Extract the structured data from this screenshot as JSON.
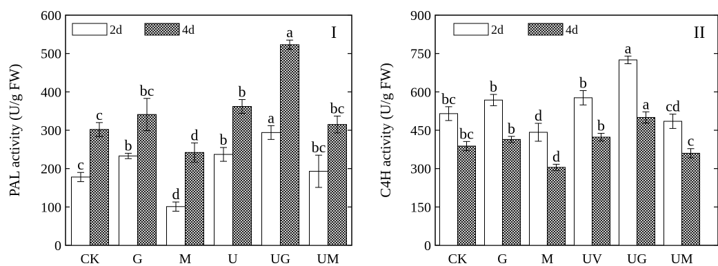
{
  "chart_data": [
    {
      "type": "bar",
      "panel_label": "I",
      "ylabel": "PAL activity (U/g FW)",
      "ylim": [
        0,
        600
      ],
      "yticks": [
        0,
        100,
        200,
        300,
        400,
        500,
        600
      ],
      "categories": [
        "CK",
        "G",
        "M",
        "U",
        "UG",
        "UM"
      ],
      "legend_position": "top-left",
      "series": [
        {
          "name": "2d",
          "pattern": "white",
          "values": [
            178,
            233,
            101,
            237,
            294,
            193
          ],
          "errors": [
            12,
            7,
            12,
            18,
            18,
            42
          ],
          "labels": [
            "c",
            "b",
            "d",
            "b",
            "a",
            "bc"
          ]
        },
        {
          "name": "4d",
          "pattern": "crosshatch",
          "values": [
            302,
            341,
            242,
            362,
            523,
            315
          ],
          "errors": [
            18,
            42,
            25,
            18,
            12,
            22
          ],
          "labels": [
            "c",
            "bc",
            "d",
            "b",
            "a",
            "bc"
          ]
        }
      ]
    },
    {
      "type": "bar",
      "panel_label": "II",
      "ylabel": "C4H activity (U/g FW)",
      "ylim": [
        0,
        900
      ],
      "yticks": [
        0,
        150,
        300,
        450,
        600,
        750,
        900
      ],
      "categories": [
        "CK",
        "G",
        "M",
        "UV",
        "UG",
        "UM"
      ],
      "legend_position": "top-left",
      "series": [
        {
          "name": "2d",
          "pattern": "white",
          "values": [
            515,
            568,
            442,
            577,
            725,
            485
          ],
          "errors": [
            27,
            22,
            35,
            28,
            15,
            28
          ],
          "labels": [
            "bc",
            "b",
            "d",
            "b",
            "a",
            "cd"
          ]
        },
        {
          "name": "4d",
          "pattern": "crosshatch",
          "values": [
            388,
            414,
            305,
            423,
            500,
            360
          ],
          "errors": [
            18,
            12,
            12,
            15,
            22,
            18
          ],
          "labels": [
            "bc",
            "b",
            "d",
            "b",
            "a",
            "c"
          ]
        }
      ]
    }
  ],
  "style": {
    "bar_stroke": "#000000",
    "bar_fill_white": "#ffffff",
    "hatch_color": "#000000"
  }
}
